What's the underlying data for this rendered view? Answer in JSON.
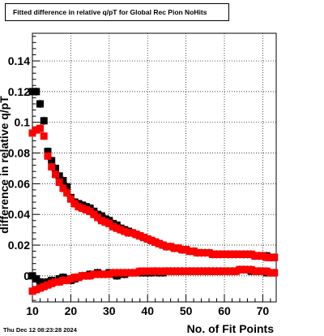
{
  "page": {
    "datestamp": "Thu Dec 12 08:23:28 2024"
  },
  "chart_data": {
    "type": "scatter",
    "title": "Fitted difference in relative q/pT for Global Rec Pion NoHits",
    "xlabel": "No. of Fit Points",
    "ylabel": "difference in relative q/pT",
    "xlim": [
      10,
      73.5
    ],
    "ylim": [
      -0.017,
      0.158
    ],
    "grid": true,
    "x_ticks": [
      10,
      20,
      30,
      40,
      50,
      60,
      70
    ],
    "y_ticks": [
      0,
      0.02,
      0.04,
      0.06,
      0.08,
      0.1,
      0.12,
      0.14
    ],
    "y_tick_labels": [
      "0",
      "0.02",
      "0.04",
      "0.06",
      "0.08",
      "0.1",
      "0.12",
      "0.14"
    ],
    "colors": {
      "black": "#000000",
      "red": "#ff0000"
    },
    "series": [
      {
        "color": "black",
        "role": "sigma",
        "x": [
          10,
          11,
          12,
          13,
          14,
          15,
          16,
          17,
          18,
          19,
          20,
          21,
          22,
          23,
          24,
          25,
          26,
          27,
          28,
          29,
          30,
          31,
          32,
          33,
          34,
          35,
          36,
          37,
          38,
          39,
          40,
          41,
          42,
          43,
          44,
          45,
          46,
          47,
          48,
          49,
          50,
          51,
          52,
          53,
          54,
          55,
          56,
          57,
          58,
          59,
          60,
          61,
          62,
          63,
          64,
          65,
          66,
          67,
          68,
          69,
          70,
          71,
          72,
          73
        ],
        "y": [
          0.12,
          0.12,
          0.112,
          0.101,
          0.081,
          0.075,
          0.07,
          0.065,
          0.062,
          0.058,
          0.051,
          0.048,
          0.047,
          0.046,
          0.045,
          0.044,
          0.042,
          0.04,
          0.039,
          0.037,
          0.036,
          0.034,
          0.033,
          0.031,
          0.03,
          0.029,
          0.028,
          0.027,
          0.026,
          0.025,
          0.024,
          0.023,
          0.022,
          0.021,
          0.02,
          0.019,
          0.019,
          0.018,
          0.018,
          0.017,
          0.017,
          0.016,
          0.016,
          0.015,
          0.015,
          0.015,
          0.015,
          0.014,
          0.014,
          0.014,
          0.014,
          0.014,
          0.014,
          0.014,
          0.014,
          0.014,
          0.014,
          0.014,
          0.013,
          0.013,
          0.013,
          0.013,
          0.012,
          0.012
        ]
      },
      {
        "color": "red",
        "role": "sigma",
        "x": [
          10,
          11,
          12,
          13,
          14,
          15,
          16,
          17,
          18,
          19,
          20,
          21,
          22,
          23,
          24,
          25,
          26,
          27,
          28,
          29,
          30,
          31,
          32,
          33,
          34,
          35,
          36,
          37,
          38,
          39,
          40,
          41,
          42,
          43,
          44,
          45,
          46,
          47,
          48,
          49,
          50,
          51,
          52,
          53,
          54,
          55,
          56,
          57,
          58,
          59,
          60,
          61,
          62,
          63,
          64,
          65,
          66,
          67,
          68,
          69,
          70,
          71,
          72,
          73
        ],
        "y": [
          0.093,
          0.095,
          0.096,
          0.091,
          0.078,
          0.071,
          0.066,
          0.061,
          0.057,
          0.054,
          0.05,
          0.047,
          0.045,
          0.044,
          0.043,
          0.042,
          0.04,
          0.038,
          0.036,
          0.035,
          0.034,
          0.032,
          0.031,
          0.03,
          0.029,
          0.028,
          0.028,
          0.027,
          0.026,
          0.025,
          0.024,
          0.023,
          0.022,
          0.021,
          0.02,
          0.019,
          0.019,
          0.018,
          0.018,
          0.017,
          0.017,
          0.016,
          0.016,
          0.015,
          0.015,
          0.015,
          0.015,
          0.014,
          0.014,
          0.014,
          0.014,
          0.014,
          0.014,
          0.014,
          0.014,
          0.014,
          0.014,
          0.014,
          0.013,
          0.013,
          0.013,
          0.012,
          0.012,
          0.012
        ]
      },
      {
        "color": "black",
        "role": "mean",
        "x": [
          10,
          11,
          12,
          13,
          14,
          15,
          16,
          17,
          18,
          19,
          20,
          21,
          22,
          23,
          24,
          25,
          26,
          27,
          28,
          29,
          30,
          31,
          32,
          33,
          34,
          35,
          36,
          37,
          38,
          39,
          40,
          41,
          42,
          43,
          44,
          45,
          46,
          47,
          48,
          49,
          50,
          51,
          52,
          53,
          54,
          55,
          56,
          57,
          58,
          59,
          60,
          61,
          62,
          63,
          64,
          65,
          66,
          67,
          68,
          69,
          70,
          71,
          72,
          73
        ],
        "y": [
          0.0,
          -0.002,
          -0.004,
          -0.005,
          -0.004,
          -0.003,
          -0.004,
          -0.002,
          -0.001,
          -0.002,
          -0.003,
          -0.002,
          -0.001,
          0.0,
          0.0,
          0.001,
          0.001,
          0.002,
          0.001,
          0.001,
          0.002,
          0.001,
          0.0,
          0.001,
          0.001,
          0.002,
          0.002,
          0.002,
          0.002,
          0.002,
          0.002,
          0.002,
          0.003,
          0.002,
          0.002,
          0.003,
          0.003,
          0.003,
          0.003,
          0.003,
          0.003,
          0.003,
          0.003,
          0.003,
          0.003,
          0.003,
          0.003,
          0.003,
          0.003,
          0.003,
          0.003,
          0.003,
          0.003,
          0.003,
          0.004,
          0.004,
          0.004,
          0.003,
          0.003,
          0.003,
          0.003,
          0.002,
          0.002,
          0.002
        ]
      },
      {
        "color": "red",
        "role": "mean",
        "x": [
          10,
          11,
          12,
          13,
          14,
          15,
          16,
          17,
          18,
          19,
          20,
          21,
          22,
          23,
          24,
          25,
          26,
          27,
          28,
          29,
          30,
          31,
          32,
          33,
          34,
          35,
          36,
          37,
          38,
          39,
          40,
          41,
          42,
          43,
          44,
          45,
          46,
          47,
          48,
          49,
          50,
          51,
          52,
          53,
          54,
          55,
          56,
          57,
          58,
          59,
          60,
          61,
          62,
          63,
          64,
          65,
          66,
          67,
          68,
          69,
          70,
          71,
          72,
          73
        ],
        "y": [
          -0.01,
          -0.009,
          -0.008,
          -0.007,
          -0.006,
          -0.005,
          -0.004,
          -0.004,
          -0.003,
          -0.003,
          -0.002,
          -0.001,
          -0.001,
          0.0,
          0.0,
          0.0,
          0.001,
          0.001,
          0.001,
          0.001,
          0.001,
          0.002,
          0.002,
          0.002,
          0.002,
          0.002,
          0.002,
          0.002,
          0.003,
          0.003,
          0.003,
          0.003,
          0.003,
          0.003,
          0.003,
          0.003,
          0.003,
          0.003,
          0.003,
          0.003,
          0.003,
          0.003,
          0.003,
          0.003,
          0.003,
          0.003,
          0.003,
          0.003,
          0.003,
          0.003,
          0.003,
          0.003,
          0.003,
          0.003,
          0.004,
          0.004,
          0.004,
          0.004,
          0.003,
          0.003,
          0.003,
          0.003,
          0.002,
          0.002
        ]
      }
    ]
  }
}
